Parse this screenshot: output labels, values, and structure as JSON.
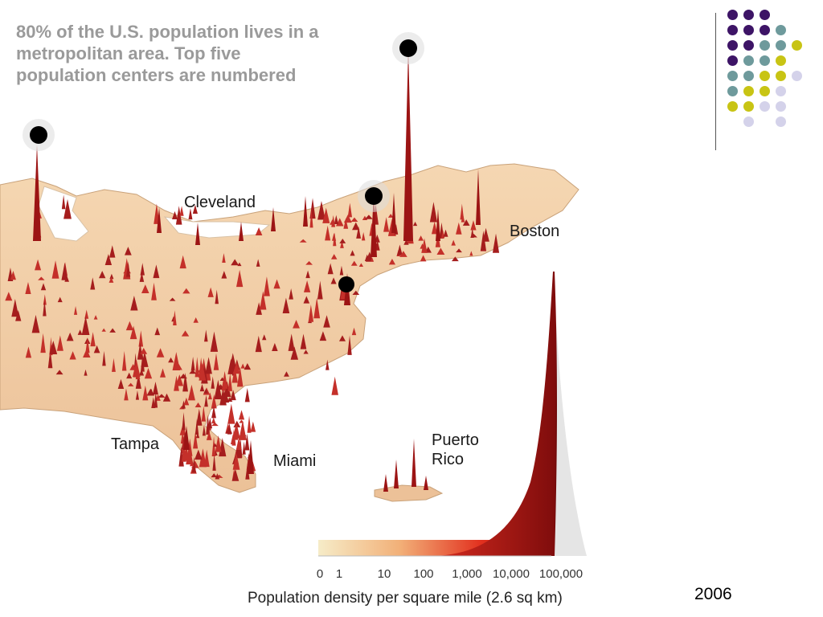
{
  "caption": "80% of the U.S. population lives in a\nmetropolitan area. Top five\npopulation centers are numbered",
  "cities": {
    "cleveland": "Cleveland",
    "boston": "Boston",
    "tampa": "Tampa",
    "miami": "Miami",
    "puerto_rico": "Puerto\nRico"
  },
  "legend": {
    "title": "Population density per square mile (2.6 sq km)",
    "ticks": [
      "0",
      "1",
      "10",
      "100",
      "1,000",
      "10,000",
      "100,000"
    ],
    "colors": [
      "#f3e6c4",
      "#f0a070",
      "#d8281c",
      "#8a1010"
    ]
  },
  "year": "2006",
  "colors": {
    "purple": "#3d1466",
    "teal": "#6e9a9c",
    "olive": "#c8c414",
    "lavender": "#d4d2ea",
    "land": "#f2cfa6",
    "spike": "#b71c1c"
  }
}
